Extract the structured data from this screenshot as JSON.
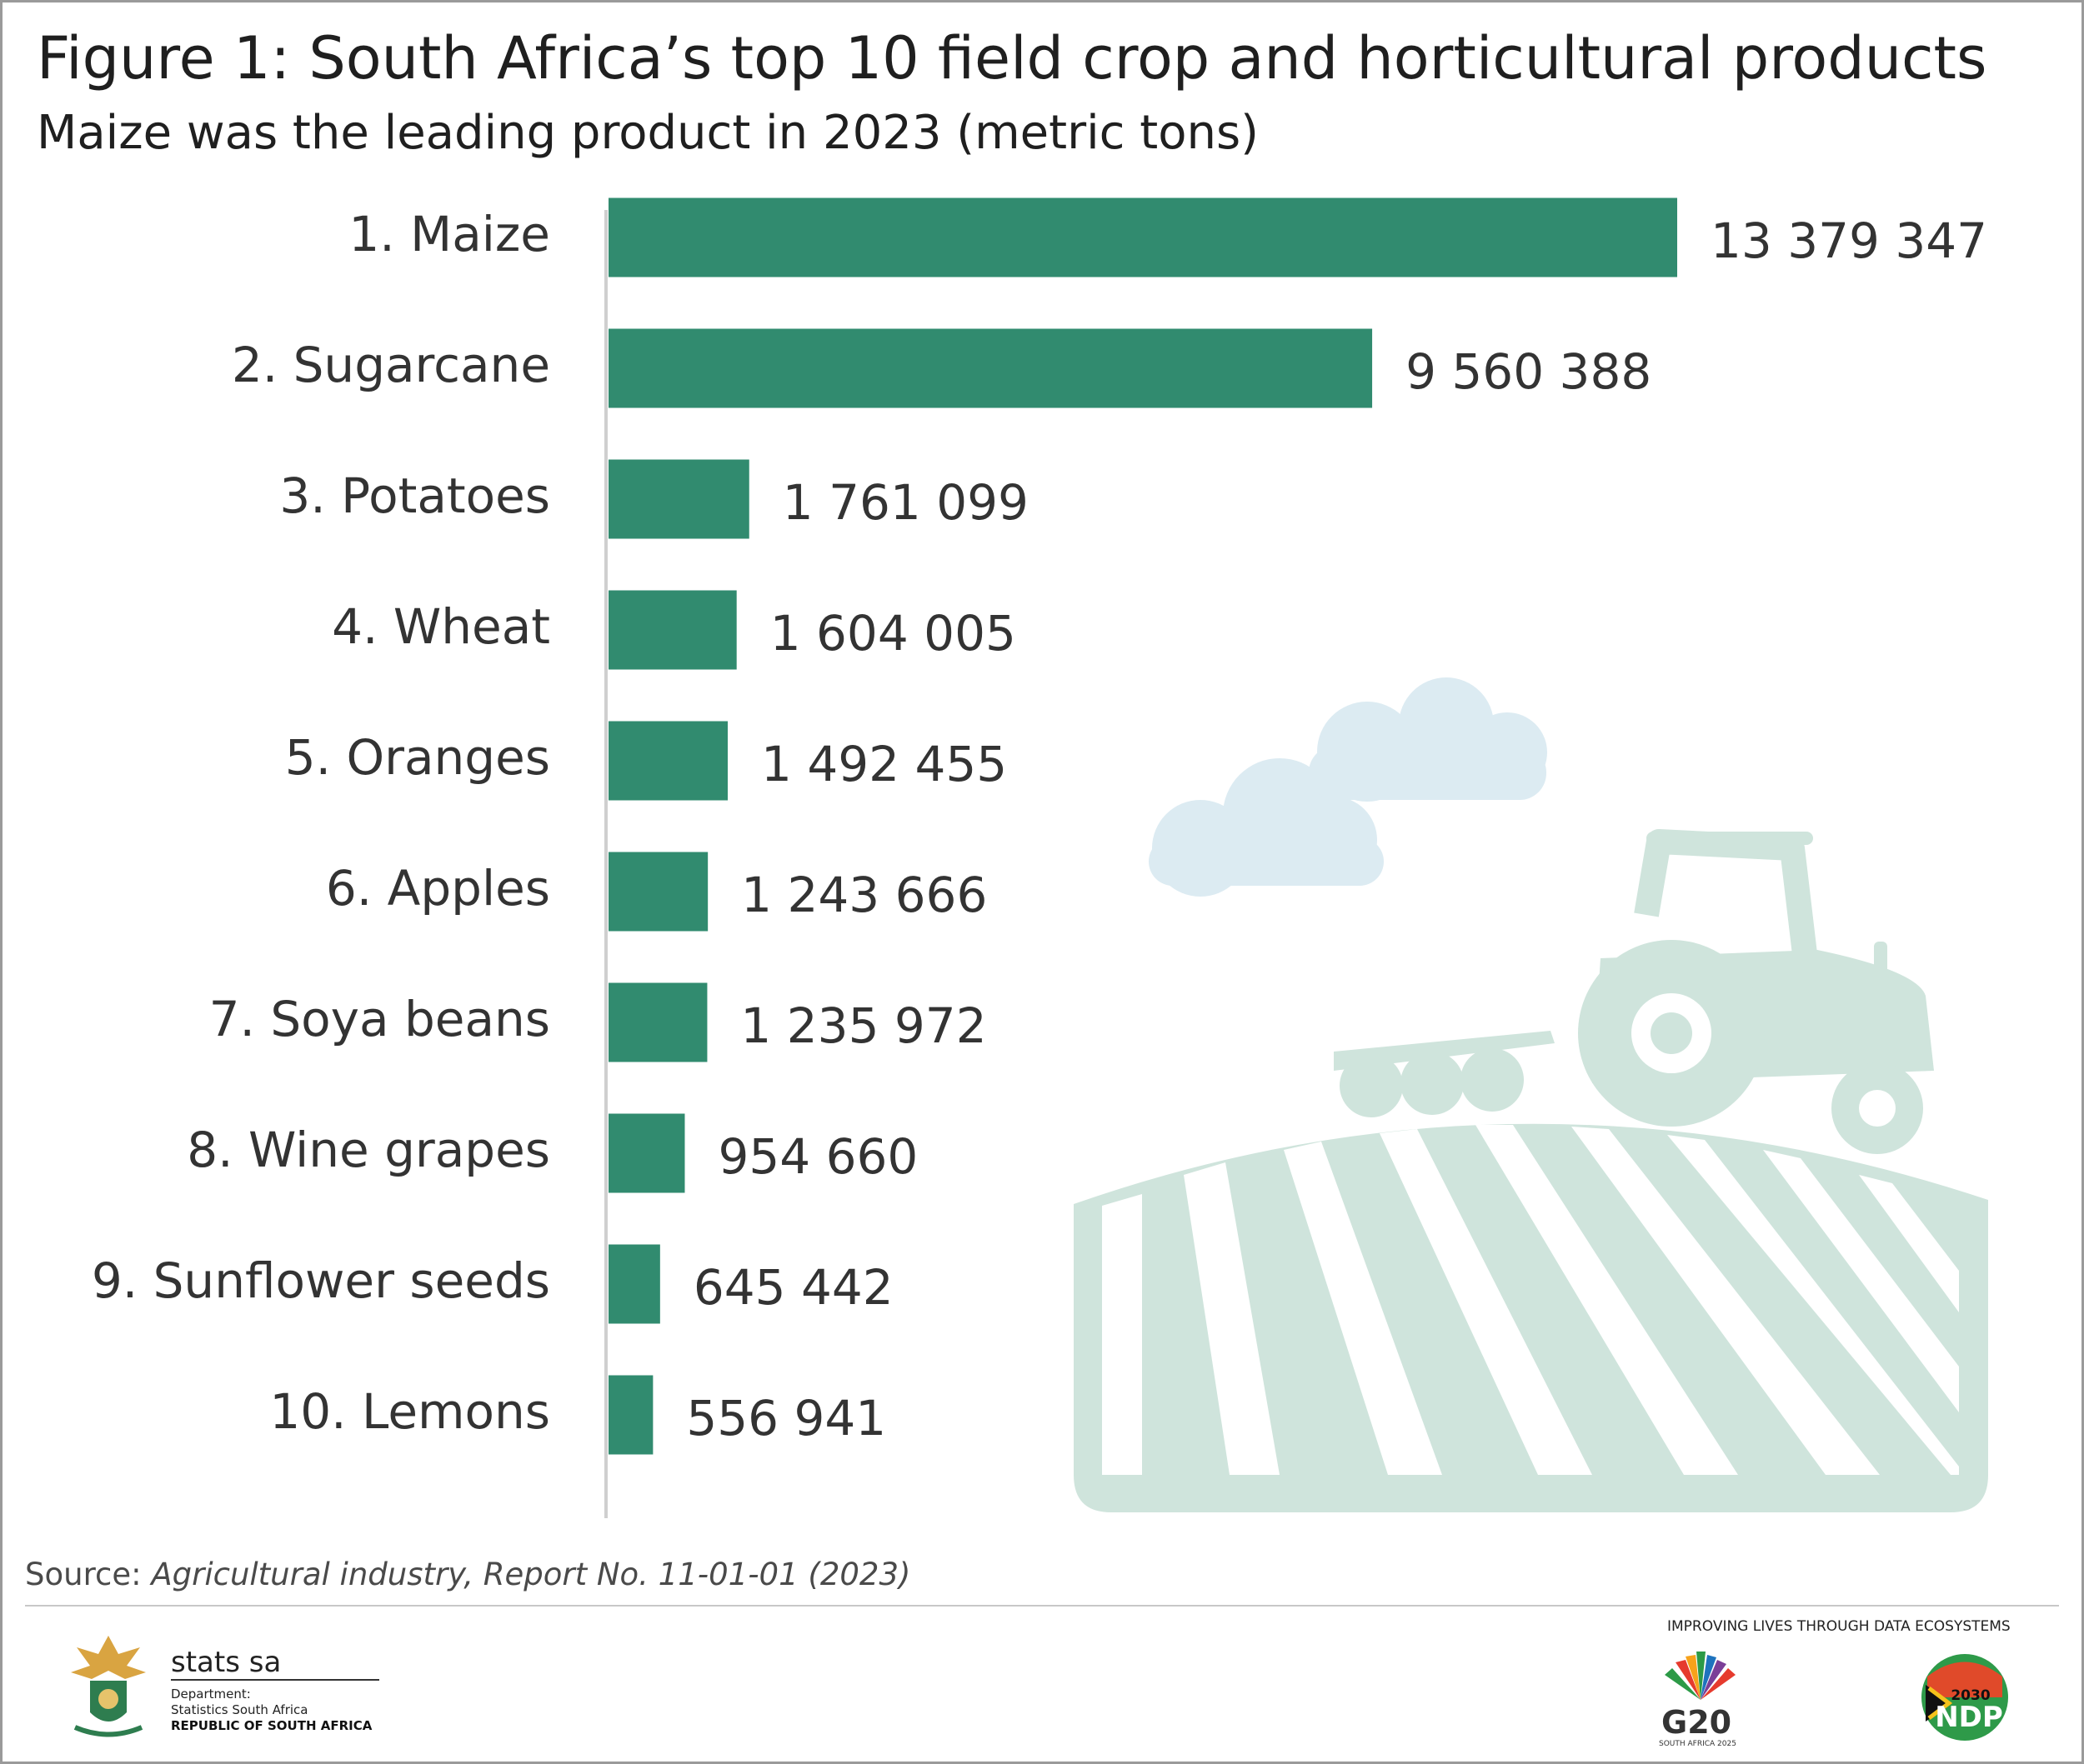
{
  "header": {
    "title": "Figure 1: South Africa’s top 10 field crop and horticultural products",
    "subtitle": "Maize was the leading product in 2023 (metric tons)"
  },
  "chart_data": {
    "type": "bar",
    "orientation": "horizontal",
    "categories": [
      "1. Maize",
      "2. Sugarcane",
      "3. Potatoes",
      "4. Wheat",
      "5. Oranges",
      "6. Apples",
      "7. Soya beans",
      "8. Wine grapes",
      "9. Sunflower seeds",
      "10. Lemons"
    ],
    "values": [
      13379347,
      9560388,
      1761099,
      1604005,
      1492455,
      1243666,
      1235972,
      954660,
      645442,
      556941
    ],
    "value_labels": [
      "13 379 347",
      "9 560 388",
      "1 761 099",
      "1 604 005",
      "1 492 455",
      "1 243 666",
      "1 235 972",
      "954 660",
      "645 442",
      "556 941"
    ],
    "bar_color": "#318b6f",
    "grid": false,
    "legend": "none"
  },
  "source": {
    "prefix": "Source: ",
    "text": "Agricultural industry, Report No. 11-01-01 (2023)"
  },
  "footer": {
    "org_name": "stats sa",
    "dept_line1": "Department:",
    "dept_line2": "Statistics South Africa",
    "dept_line3": "REPUBLIC OF SOUTH AFRICA",
    "tagline": "IMPROVING LIVES THROUGH DATA ECOSYSTEMS",
    "g20_label": "G20",
    "g20_sub": "SOUTH AFRICA 2025",
    "ndp_label": "NDP",
    "ndp_year": "2030"
  },
  "decor": {
    "illustration_color": "#cfe4dc",
    "cloud_color": "#dcebf2",
    "icons": [
      "cloud-icon",
      "tractor-icon",
      "field-icon",
      "coat-of-arms-icon",
      "g20-icon",
      "ndp-icon"
    ]
  }
}
